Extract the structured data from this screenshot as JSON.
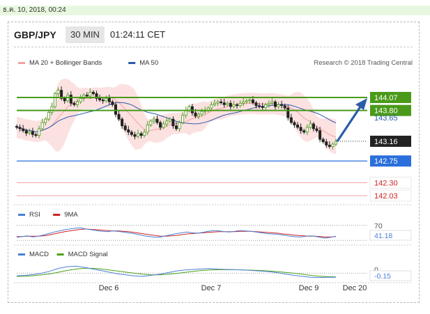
{
  "date_bar": "ธ.ค. 10, 2018, 00:24",
  "header": {
    "symbol": "GBP/JPY",
    "timeframe": "30 MIN",
    "time": "01:24:11 CET"
  },
  "colors": {
    "bollinger": "#f5a0a0",
    "ma50": "#2a5caa",
    "resistance": "#4a9a1a",
    "support": "#2a6fdb",
    "support2": "#e04040",
    "rsi": "#4a7fd6",
    "rsi_ma": "#cc2222",
    "macd": "#4a7fd6",
    "macd_signal": "#4aa01a",
    "candle_up": "#4a9a1a",
    "candle_down": "#222222",
    "arrow": "#2a5caa"
  },
  "chart_data": [
    {
      "type": "candlestick",
      "legend": [
        {
          "name": "MA 20 + Bollinger Bands",
          "color": "#f5a0a0"
        },
        {
          "name": "MA 50",
          "color": "#2a5caa"
        }
      ],
      "credit": "Research © 2018 Trading Central",
      "x_ticks": [
        "Dec 6",
        "Dec 7",
        "Dec 9",
        "Dec 20"
      ],
      "y_range": [
        141.95,
        144.35
      ],
      "close": [
        143.45,
        143.42,
        143.38,
        143.33,
        143.36,
        143.3,
        143.28,
        143.42,
        143.55,
        143.62,
        143.76,
        143.88,
        144.15,
        144.22,
        144.05,
        144.0,
        144.12,
        143.95,
        143.92,
        143.98,
        144.05,
        144.12,
        144.1,
        144.18,
        144.15,
        144.05,
        144.02,
        144.0,
        144.05,
        143.98,
        143.92,
        143.72,
        143.62,
        143.48,
        143.4,
        143.35,
        143.3,
        143.26,
        143.32,
        143.28,
        143.35,
        143.5,
        143.58,
        143.62,
        143.55,
        143.45,
        143.52,
        143.58,
        143.62,
        143.48,
        143.42,
        143.55,
        143.7,
        143.8,
        143.88,
        143.75,
        143.68,
        143.72,
        143.78,
        143.8,
        143.85,
        143.92,
        143.95,
        143.98,
        143.96,
        143.92,
        143.95,
        143.88,
        143.92,
        143.9,
        143.95,
        143.98,
        144.0,
        144.02,
        143.96,
        143.9,
        143.88,
        143.86,
        143.92,
        143.95,
        143.98,
        143.88,
        143.92,
        143.9,
        143.85,
        143.65,
        143.55,
        143.5,
        143.45,
        143.38,
        143.35,
        143.45,
        143.52,
        143.42,
        143.38,
        143.2,
        143.15,
        143.08,
        143.05,
        143.1,
        143.16
      ],
      "levels": [
        {
          "value": 144.07,
          "label": "144.07",
          "kind": "resistance"
        },
        {
          "value": 143.8,
          "label": "143.80",
          "kind": "resistance"
        },
        {
          "value": 143.65,
          "label": "143.65",
          "kind": "ma50"
        },
        {
          "value": 143.16,
          "label": "143.16",
          "kind": "last"
        },
        {
          "value": 142.75,
          "label": "142.75",
          "kind": "support"
        },
        {
          "value": 142.3,
          "label": "142.30",
          "kind": "support2"
        },
        {
          "value": 142.03,
          "label": "142.03",
          "kind": "support2"
        }
      ]
    },
    {
      "type": "line",
      "legend": [
        {
          "name": "RSI",
          "color": "#4a7fd6"
        },
        {
          "name": "9MA",
          "color": "#cc2222"
        }
      ],
      "y_range": [
        25,
        80
      ],
      "ref_lines": [
        70,
        30
      ],
      "tick_label": "70",
      "value_label": "41.18",
      "rsi": [
        38,
        40,
        42,
        39,
        41,
        44,
        48,
        52,
        55,
        58,
        60,
        62,
        63,
        60,
        58,
        56,
        54,
        53,
        55,
        54,
        52,
        50,
        48,
        45,
        42,
        40,
        38,
        39,
        42,
        45,
        48,
        50,
        52,
        50,
        49,
        51,
        54,
        56,
        55,
        53,
        52,
        54,
        56,
        55,
        54,
        52,
        50,
        48,
        47,
        46,
        44,
        42,
        40,
        39,
        40,
        42,
        41,
        38,
        36,
        38,
        41
      ],
      "ma9": [
        40,
        40,
        41,
        41,
        41,
        42,
        44,
        47,
        50,
        53,
        55,
        57,
        59,
        60,
        59,
        58,
        57,
        56,
        55,
        55,
        54,
        53,
        51,
        49,
        47,
        45,
        43,
        41,
        41,
        42,
        43,
        45,
        47,
        48,
        49,
        50,
        51,
        52,
        53,
        53,
        53,
        53,
        54,
        54,
        54,
        53,
        52,
        51,
        50,
        49,
        47,
        46,
        44,
        43,
        42,
        41,
        41,
        40,
        39,
        39,
        40
      ]
    },
    {
      "type": "line",
      "legend": [
        {
          "name": "MACD",
          "color": "#4a7fd6"
        },
        {
          "name": "MACD Signal",
          "color": "#4aa01a"
        }
      ],
      "y_range": [
        -0.3,
        0.45
      ],
      "tick_label": "0",
      "value_label": "-0.15",
      "macd": [
        -0.1,
        -0.08,
        -0.05,
        0.0,
        0.08,
        0.18,
        0.24,
        0.26,
        0.22,
        0.16,
        0.1,
        0.04,
        -0.02,
        -0.06,
        -0.1,
        -0.12,
        -0.08,
        -0.04,
        0.02,
        0.08,
        0.12,
        0.14,
        0.16,
        0.17,
        0.15,
        0.14,
        0.13,
        0.12,
        0.1,
        0.08,
        0.06,
        0.02,
        -0.03,
        -0.08,
        -0.12,
        -0.15,
        -0.16,
        -0.15,
        -0.15
      ],
      "signal": [
        -0.12,
        -0.11,
        -0.09,
        -0.06,
        -0.02,
        0.04,
        0.1,
        0.15,
        0.18,
        0.18,
        0.16,
        0.12,
        0.08,
        0.04,
        0.0,
        -0.04,
        -0.06,
        -0.06,
        -0.04,
        -0.01,
        0.03,
        0.07,
        0.1,
        0.12,
        0.13,
        0.13,
        0.13,
        0.12,
        0.11,
        0.1,
        0.08,
        0.06,
        0.03,
        0.0,
        -0.04,
        -0.08,
        -0.11,
        -0.13,
        -0.14
      ]
    }
  ]
}
